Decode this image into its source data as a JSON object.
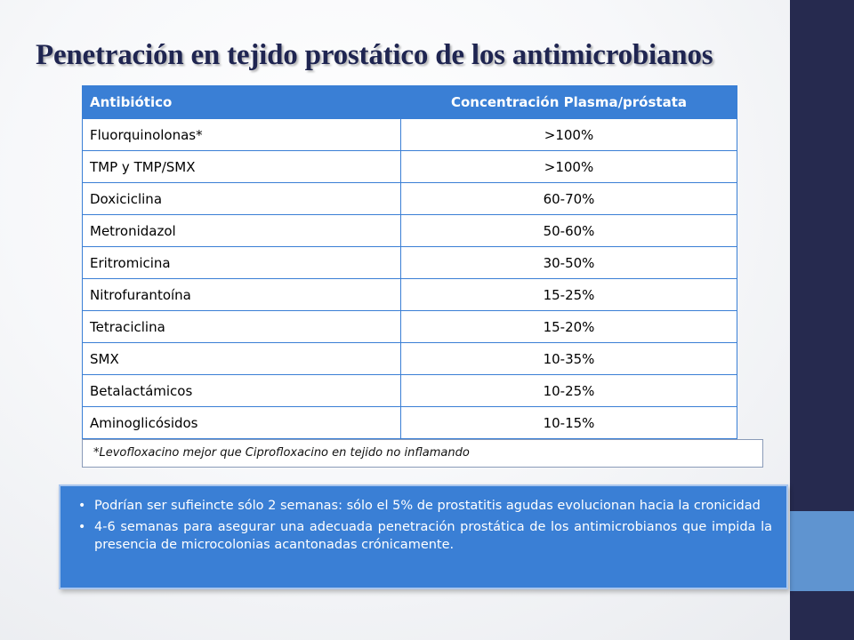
{
  "slide": {
    "title": "Penetración en tejido prostático de los antimicrobianos",
    "colors": {
      "accent": "#3a7fd5",
      "dark_band": "#262a4f",
      "band_accent": "#5f94d0",
      "title": "#1f2551"
    }
  },
  "table": {
    "headers": [
      "Antibiótico",
      "Concentración Plasma/próstata"
    ],
    "rows": [
      [
        "Fluorquinolonas*",
        ">100%"
      ],
      [
        "TMP y TMP/SMX",
        ">100%"
      ],
      [
        "Doxiciclina",
        "60-70%"
      ],
      [
        "Metronidazol",
        "50-60%"
      ],
      [
        "Eritromicina",
        "30-50%"
      ],
      [
        "Nitrofurantoína",
        "15-25%"
      ],
      [
        "Tetraciclina",
        "15-20%"
      ],
      [
        "SMX",
        "10-35%"
      ],
      [
        "Betalactámicos",
        "10-25%"
      ],
      [
        "Aminoglicósidos",
        "10-15%"
      ]
    ]
  },
  "footnote": "*Levofloxacino mejor que Ciprofloxacino en tejido no inflamando",
  "bullets": [
    "Podrían ser sufieincte sólo 2 semanas: sólo el 5% de prostatitis agudas evolucionan hacia la cronicidad",
    "4-6 semanas para asegurar una adecuada penetración prostática de los antimicrobianos que impida la presencia de microcolonias acantonadas crónicamente."
  ]
}
